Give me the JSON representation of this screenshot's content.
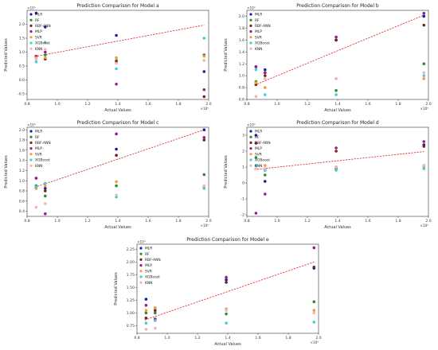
{
  "chart_data": [
    {
      "type": "scatter",
      "title": "Prediction Comparison for Model a",
      "xlabel": "Actual Values",
      "ylabel": "Predicted Values",
      "x_exponent": "×10⁶",
      "y_exponent": "×10⁶",
      "xlim": [
        0.8,
        2.0
      ],
      "ylim": [
        -0.7,
        2.5
      ],
      "xticks": [
        "0.8",
        "1.0",
        "1.2",
        "1.4",
        "1.6",
        "1.8",
        "2.0"
      ],
      "yticks": [
        "-0.5",
        "0.0",
        "0.5",
        "1.0",
        "1.5",
        "2.0"
      ],
      "reference_line": [
        [
          0.85,
          0.84
        ],
        [
          1.97,
          1.97
        ]
      ],
      "x": [
        0.86,
        0.92,
        1.39,
        1.97
      ],
      "series": [
        {
          "name": "MLR",
          "color": "#1a1aa8",
          "values": [
            2.4,
            1.9,
            1.6,
            0.3
          ]
        },
        {
          "name": "RF",
          "color": "#2e8b2e",
          "values": [
            0.8,
            0.9,
            0.7,
            0.9
          ]
        },
        {
          "name": "RBF-ANN",
          "color": "#7a1f1f",
          "values": [
            0.85,
            0.75,
            0.65,
            -0.6
          ]
        },
        {
          "name": "MLP",
          "color": "#9a1a8a",
          "values": [
            0.85,
            1.0,
            -0.15,
            -0.35
          ]
        },
        {
          "name": "SVR",
          "color": "#f0a030",
          "values": [
            0.8,
            0.8,
            0.8,
            0.85
          ]
        },
        {
          "name": "XGBoost",
          "color": "#3cd0d8",
          "values": [
            0.65,
            1.35,
            0.4,
            1.5
          ]
        },
        {
          "name": "KNN",
          "color": "#f4b0c0",
          "values": [
            0.75,
            1.1,
            0.6,
            0.7
          ]
        }
      ]
    },
    {
      "type": "scatter",
      "title": "Prediction Comparison for Model b",
      "xlabel": "Actual Values",
      "ylabel": "Predicted Values",
      "x_exponent": "×10⁶",
      "y_exponent": "×10⁶",
      "xlim": [
        0.8,
        2.0
      ],
      "ylim": [
        0.6,
        2.1
      ],
      "xticks": [
        "0.8",
        "1.0",
        "1.2",
        "1.4",
        "1.6",
        "1.8",
        "2.0"
      ],
      "yticks": [
        "0.6",
        "0.8",
        "1.0",
        "1.2",
        "1.4",
        "1.6",
        "1.8",
        "2.0"
      ],
      "reference_line": [
        [
          0.85,
          0.84
        ],
        [
          1.97,
          2.02
        ]
      ],
      "x": [
        0.86,
        0.92,
        1.39,
        1.97
      ],
      "series": [
        {
          "name": "MLR",
          "color": "#1a1aa8",
          "values": [
            1.15,
            1.1,
            1.6,
            2.0
          ]
        },
        {
          "name": "RF",
          "color": "#2e8b2e",
          "values": [
            0.9,
            1.05,
            0.75,
            1.2
          ]
        },
        {
          "name": "RBF-ANN",
          "color": "#7a1f1f",
          "values": [
            0.85,
            1.0,
            1.6,
            1.85
          ]
        },
        {
          "name": "MLP",
          "color": "#9a1a8a",
          "values": [
            1.15,
            1.05,
            1.65,
            2.05
          ]
        },
        {
          "name": "SVR",
          "color": "#f0a030",
          "values": [
            0.88,
            0.8,
            0.95,
            0.95
          ]
        },
        {
          "name": "XGBoost",
          "color": "#3cd0d8",
          "values": [
            1.1,
            0.68,
            0.68,
            1.0
          ]
        },
        {
          "name": "KNN",
          "color": "#f4b0c0",
          "values": [
            0.65,
            0.95,
            0.95,
            1.05
          ]
        }
      ]
    },
    {
      "type": "scatter",
      "title": "Prediction Comparison for Model c",
      "xlabel": "Actual Values",
      "ylabel": "Predicted Values",
      "x_exponent": "×10⁶",
      "y_exponent": "×10⁶",
      "xlim": [
        0.8,
        2.0
      ],
      "ylim": [
        0.3,
        2.05
      ],
      "xticks": [
        "0.8",
        "1.0",
        "1.2",
        "1.4",
        "1.6",
        "1.8",
        "2.0"
      ],
      "yticks": [
        "0.4",
        "0.6",
        "0.8",
        "1.0",
        "1.2",
        "1.4",
        "1.6",
        "1.8",
        "2.0"
      ],
      "reference_line": [
        [
          0.85,
          0.87
        ],
        [
          1.97,
          2.0
        ]
      ],
      "x": [
        0.86,
        0.92,
        1.39,
        1.97
      ],
      "series": [
        {
          "name": "MLR",
          "color": "#1a1aa8",
          "values": [
            1.05,
            0.85,
            1.62,
            2.0
          ]
        },
        {
          "name": "RF",
          "color": "#2e8b2e",
          "values": [
            0.9,
            0.7,
            0.9,
            1.12
          ]
        },
        {
          "name": "RBF-ANN",
          "color": "#7a1f1f",
          "values": [
            0.85,
            0.8,
            1.5,
            1.8
          ]
        },
        {
          "name": "MLP",
          "color": "#9a1a8a",
          "values": [
            1.05,
            0.35,
            1.92,
            1.85
          ]
        },
        {
          "name": "SVR",
          "color": "#f0a030",
          "values": [
            0.85,
            0.9,
            0.98,
            0.88
          ]
        },
        {
          "name": "XGBoost",
          "color": "#3cd0d8",
          "values": [
            0.88,
            0.95,
            0.68,
            0.85
          ]
        },
        {
          "name": "KNN",
          "color": "#f4b0c0",
          "values": [
            0.48,
            0.55,
            0.72,
            0.9
          ]
        }
      ]
    },
    {
      "type": "scatter",
      "title": "Prediction Comparison for Model d",
      "xlabel": "Actual Values",
      "ylabel": "Predicted Values",
      "x_exponent": "×10⁶",
      "y_exponent": "×10⁶",
      "xlim": [
        0.8,
        2.0
      ],
      "ylim": [
        -2.1,
        3.5
      ],
      "xticks": [
        "0.8",
        "1.0",
        "1.2",
        "1.4",
        "1.6",
        "1.8",
        "2.0"
      ],
      "yticks": [
        "-2",
        "-1",
        "0",
        "1",
        "2",
        "3"
      ],
      "reference_line": [
        [
          0.85,
          0.84
        ],
        [
          1.97,
          1.97
        ]
      ],
      "x": [
        0.86,
        0.92,
        1.39,
        1.97
      ],
      "series": [
        {
          "name": "MLR",
          "color": "#1a1aa8",
          "values": [
            3.0,
            0.1,
            1.0,
            2.4
          ]
        },
        {
          "name": "RF",
          "color": "#2e8b2e",
          "values": [
            1.6,
            0.5,
            0.9,
            1.1
          ]
        },
        {
          "name": "RBF-ANN",
          "color": "#7a1f1f",
          "values": [
            2.5,
            0.8,
            2.0,
            2.3
          ]
        },
        {
          "name": "MLP",
          "color": "#9a1a8a",
          "values": [
            -1.9,
            -0.7,
            2.2,
            2.6
          ]
        },
        {
          "name": "SVR",
          "color": "#f0a030",
          "values": [
            0.9,
            1.1,
            1.0,
            1.0
          ]
        },
        {
          "name": "XGBoost",
          "color": "#3cd0d8",
          "values": [
            1.1,
            0.8,
            0.8,
            0.9
          ]
        },
        {
          "name": "KNN",
          "color": "#f4b0c0",
          "values": [
            0.9,
            0.9,
            1.0,
            1.1
          ]
        }
      ]
    },
    {
      "type": "scatter",
      "title": "Prediction Comparison for Model e",
      "xlabel": "Actual Values",
      "ylabel": "Predicted Values",
      "x_exponent": "×10⁶",
      "y_exponent": "×10⁶",
      "xlim": [
        0.8,
        2.0
      ],
      "ylim": [
        0.6,
        2.35
      ],
      "xticks": [
        "0.8",
        "1.0",
        "1.2",
        "1.4",
        "1.6",
        "1.8",
        "2.0"
      ],
      "yticks": [
        "0.75",
        "1.00",
        "1.25",
        "1.50",
        "1.75",
        "2.00",
        "2.25"
      ],
      "reference_line": [
        [
          0.85,
          0.86
        ],
        [
          1.97,
          2.0
        ]
      ],
      "x": [
        0.86,
        0.92,
        1.39,
        1.97
      ],
      "series": [
        {
          "name": "MLR",
          "color": "#1a1aa8",
          "values": [
            1.27,
            1.1,
            1.65,
            1.88
          ]
        },
        {
          "name": "RF",
          "color": "#2e8b2e",
          "values": [
            1.0,
            1.0,
            0.98,
            1.22
          ]
        },
        {
          "name": "RBF-ANN",
          "color": "#7a1f1f",
          "values": [
            0.9,
            1.05,
            1.6,
            1.9
          ]
        },
        {
          "name": "MLP",
          "color": "#9a1a8a",
          "values": [
            1.15,
            0.88,
            1.7,
            2.28
          ]
        },
        {
          "name": "SVR",
          "color": "#f0a030",
          "values": [
            1.05,
            1.1,
            1.08,
            1.05
          ]
        },
        {
          "name": "XGBoost",
          "color": "#3cd0d8",
          "values": [
            0.8,
            0.85,
            0.8,
            0.82
          ]
        },
        {
          "name": "KNN",
          "color": "#f4b0c0",
          "values": [
            0.68,
            0.7,
            1.05,
            1.0
          ]
        }
      ]
    }
  ]
}
